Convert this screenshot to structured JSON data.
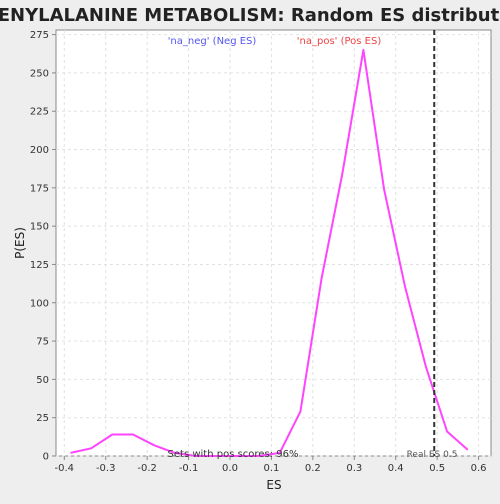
{
  "chart_data": {
    "type": "line",
    "title": "PHENYLALANINE METABOLISM: Random ES distribution",
    "xlabel": "ES",
    "ylabel": "P(ES)",
    "xlim": [
      -0.42,
      0.63
    ],
    "ylim": [
      0,
      278
    ],
    "x_ticks": [
      -0.4,
      -0.3,
      -0.2,
      -0.1,
      0.0,
      0.1,
      0.2,
      0.3,
      0.4,
      0.5,
      0.6
    ],
    "x_tick_labels": [
      "-0.4",
      "-0.3",
      "-0.2",
      "-0.1",
      "0.0",
      "0.1",
      "0.2",
      "0.3",
      "0.4",
      "0.5",
      "0.6"
    ],
    "y_ticks": [
      0,
      25,
      50,
      75,
      100,
      125,
      150,
      175,
      200,
      225,
      250,
      275
    ],
    "y_tick_labels": [
      "0",
      "25",
      "50",
      "75",
      "100",
      "125",
      "150",
      "175",
      "200",
      "225",
      "250",
      "275"
    ],
    "grid": true,
    "series": [
      {
        "name": "'na_pos' (Pos ES)",
        "color": "#ff44ff",
        "x": [
          -0.385,
          -0.335,
          -0.284,
          -0.234,
          -0.183,
          -0.133,
          -0.082,
          -0.032,
          0.019,
          0.069,
          0.12,
          0.17,
          0.221,
          0.271,
          0.322,
          0.372,
          0.423,
          0.473,
          0.524,
          0.574
        ],
        "y": [
          2,
          5,
          14,
          14,
          7,
          2,
          0,
          0,
          0,
          0,
          2,
          29,
          116,
          184,
          265,
          174,
          110,
          58,
          16,
          4
        ]
      }
    ],
    "legend": [
      {
        "label": "'na_neg' (Neg ES)",
        "color": "#5555ee"
      },
      {
        "label": "'na_pos' (Pos ES)",
        "color": "#ee4444"
      }
    ],
    "reference_line": {
      "x": 0.493,
      "label": "Real ES 0.5"
    },
    "annotations": [
      {
        "text": "Sets with pos scores: 96%"
      }
    ]
  }
}
